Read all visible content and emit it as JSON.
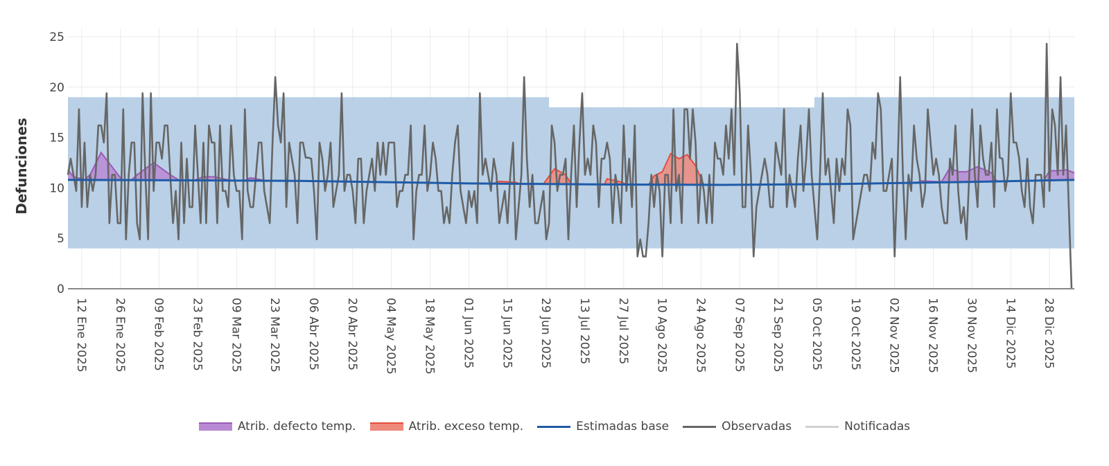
{
  "chart_data": {
    "type": "line",
    "ylabel": "Defunciones",
    "ylim": [
      0,
      25
    ],
    "yticks": [
      0,
      5,
      10,
      15,
      20,
      25
    ],
    "xlim": [
      "2025-01-07",
      "2026-01-06"
    ],
    "frequency": "daily",
    "grid": true,
    "legend_position": "bottom",
    "xtick_labels": [
      "12 Ene 2025",
      "26 Ene 2025",
      "09 Feb 2025",
      "23 Feb 2025",
      "09 Mar 2025",
      "23 Mar 2025",
      "06 Abr 2025",
      "20 Abr 2025",
      "04 May 2025",
      "18 May 2025",
      "01 Jun 2025",
      "15 Jun 2025",
      "29 Jun 2025",
      "13 Jul 2025",
      "27 Jul 2025",
      "10 Ago 2025",
      "24 Ago 2025",
      "07 Sep 2025",
      "21 Sep 2025",
      "05 Oct 2025",
      "19 Oct 2025",
      "02 Nov 2025",
      "16 Nov 2025",
      "30 Nov 2025",
      "14 Dic 2025",
      "28 Dic 2025"
    ],
    "xtick_dates": [
      "2025-01-12",
      "2025-01-26",
      "2025-02-09",
      "2025-02-23",
      "2025-03-09",
      "2025-03-23",
      "2025-04-06",
      "2025-04-20",
      "2025-05-04",
      "2025-05-18",
      "2025-06-01",
      "2025-06-15",
      "2025-06-29",
      "2025-07-13",
      "2025-07-27",
      "2025-08-10",
      "2025-08-24",
      "2025-09-07",
      "2025-09-21",
      "2025-10-05",
      "2025-10-19",
      "2025-11-02",
      "2025-11-16",
      "2025-11-30",
      "2025-12-14",
      "2025-12-28"
    ],
    "band": [
      {
        "from": "2025-01-07",
        "to": "2025-06-29",
        "lower": 4,
        "upper": 19
      },
      {
        "from": "2025-06-30",
        "to": "2025-10-03",
        "lower": 4,
        "upper": 18
      },
      {
        "from": "2025-10-04",
        "to": "2026-01-06",
        "lower": 4,
        "upper": 19
      }
    ],
    "series": [
      {
        "name": "Atrib. defecto temp.",
        "kind": "area",
        "color": "#9b59b6",
        "fill": "#b98ad4",
        "polygons": [
          [
            [
              "2025-01-07",
              11.8
            ],
            [
              "2025-01-09",
              11.1
            ],
            [
              "2025-01-12",
              10.9
            ],
            [
              "2025-01-13",
              10.8
            ],
            [
              "2025-01-15",
              11.3
            ],
            [
              "2025-01-19",
              13.5
            ],
            [
              "2025-01-26",
              11.0
            ],
            [
              "2025-01-27",
              10.8
            ]
          ],
          [
            [
              "2025-01-30",
              10.8
            ],
            [
              "2025-02-01",
              11.3
            ],
            [
              "2025-02-07",
              12.5
            ],
            [
              "2025-02-13",
              11.3
            ],
            [
              "2025-02-16",
              10.8
            ]
          ],
          [
            [
              "2025-02-22",
              10.8
            ],
            [
              "2025-02-25",
              11.1
            ],
            [
              "2025-03-01",
              11.1
            ],
            [
              "2025-03-06",
              10.8
            ]
          ],
          [
            [
              "2025-03-12",
              10.75
            ],
            [
              "2025-03-14",
              11.0
            ],
            [
              "2025-03-19",
              10.75
            ]
          ],
          [
            [
              "2025-11-10",
              10.55
            ],
            [
              "2025-11-12",
              10.7
            ],
            [
              "2025-11-19",
              10.6
            ],
            [
              "2025-11-22",
              12.0
            ],
            [
              "2025-11-25",
              11.6
            ],
            [
              "2025-11-28",
              11.6
            ],
            [
              "2025-12-02",
              12.1
            ],
            [
              "2025-12-07",
              11.5
            ],
            [
              "2025-12-09",
              10.65
            ]
          ],
          [
            [
              "2025-12-26",
              10.75
            ],
            [
              "2025-12-28",
              11.7
            ],
            [
              "2025-12-31",
              11.7
            ],
            [
              "2026-01-03",
              11.8
            ],
            [
              "2026-01-06",
              11.5
            ]
          ]
        ]
      },
      {
        "name": "Atrib. exceso temp.",
        "kind": "area",
        "color": "#e74c3c",
        "fill": "#ee8a7c",
        "polygons": [
          [
            [
              "2025-06-10",
              10.45
            ],
            [
              "2025-06-12",
              10.65
            ],
            [
              "2025-06-18",
              10.55
            ],
            [
              "2025-06-19",
              10.45
            ]
          ],
          [
            [
              "2025-06-28",
              10.4
            ],
            [
              "2025-07-02",
              11.9
            ],
            [
              "2025-07-06",
              11.3
            ],
            [
              "2025-07-08",
              10.4
            ]
          ],
          [
            [
              "2025-07-20",
              10.35
            ],
            [
              "2025-07-21",
              10.9
            ],
            [
              "2025-07-26",
              10.6
            ],
            [
              "2025-07-28",
              10.35
            ]
          ],
          [
            [
              "2025-08-05",
              10.3
            ],
            [
              "2025-08-07",
              11.2
            ],
            [
              "2025-08-10",
              11.6
            ],
            [
              "2025-08-13",
              13.4
            ],
            [
              "2025-08-16",
              12.9
            ],
            [
              "2025-08-19",
              13.3
            ],
            [
              "2025-08-22",
              12.2
            ],
            [
              "2025-08-25",
              10.3
            ]
          ]
        ]
      },
      {
        "name": "Estimadas base",
        "kind": "line",
        "color": "#1f5aa6",
        "points": [
          [
            "2025-01-07",
            10.8
          ],
          [
            "2025-04-01",
            10.7
          ],
          [
            "2025-06-01",
            10.45
          ],
          [
            "2025-07-15",
            10.35
          ],
          [
            "2025-09-01",
            10.3
          ],
          [
            "2025-10-15",
            10.4
          ],
          [
            "2025-12-01",
            10.6
          ],
          [
            "2026-01-06",
            10.8
          ]
        ]
      },
      {
        "name": "Observadas",
        "kind": "line",
        "color": "#666666",
        "start": "2025-01-07",
        "values": [
          11.3,
          12.9,
          11.3,
          9.7,
          17.8,
          8.1,
          14.5,
          8.1,
          11.3,
          9.7,
          11.3,
          16.2,
          16.2,
          14.5,
          19.4,
          6.5,
          11.3,
          11.3,
          6.5,
          6.5,
          17.8,
          4.9,
          11.3,
          14.5,
          14.5,
          6.5,
          4.9,
          19.4,
          11.3,
          4.9,
          19.4,
          9.7,
          14.5,
          14.5,
          12.9,
          16.2,
          16.2,
          11.3,
          6.5,
          9.7,
          4.9,
          14.5,
          6.5,
          12.9,
          8.1,
          8.1,
          16.2,
          11.3,
          6.5,
          14.5,
          6.5,
          16.2,
          14.5,
          14.5,
          6.5,
          16.2,
          9.7,
          9.7,
          8.1,
          16.2,
          11.3,
          9.7,
          9.7,
          4.9,
          17.8,
          9.7,
          8.1,
          8.1,
          11.3,
          14.5,
          14.5,
          9.7,
          8.1,
          6.5,
          14.5,
          21.0,
          16.2,
          14.5,
          19.4,
          8.1,
          14.5,
          12.9,
          11.3,
          6.5,
          14.5,
          14.5,
          13.0,
          13.0,
          12.9,
          9.7,
          4.9,
          14.5,
          12.9,
          9.7,
          11.3,
          14.5,
          8.1,
          9.7,
          11.3,
          19.4,
          9.7,
          11.3,
          11.3,
          9.7,
          6.5,
          12.9,
          12.9,
          6.5,
          9.7,
          11.3,
          12.9,
          9.7,
          14.5,
          11.3,
          14.5,
          11.3,
          14.5,
          14.5,
          14.5,
          8.1,
          9.7,
          9.7,
          11.3,
          11.3,
          16.2,
          4.9,
          9.7,
          11.3,
          11.3,
          16.2,
          9.7,
          11.3,
          14.5,
          12.9,
          9.7,
          9.7,
          6.5,
          8.1,
          6.5,
          11.3,
          14.5,
          16.2,
          9.7,
          8.1,
          6.5,
          9.7,
          8.1,
          9.7,
          6.5,
          19.4,
          11.3,
          12.9,
          11.3,
          9.7,
          12.9,
          11.3,
          6.5,
          8.1,
          9.7,
          6.5,
          11.3,
          14.5,
          4.9,
          8.1,
          11.3,
          21.0,
          12.9,
          8.1,
          11.3,
          6.5,
          6.5,
          8.1,
          9.7,
          4.9,
          6.5,
          16.2,
          14.5,
          9.7,
          11.3,
          11.3,
          12.9,
          4.9,
          11.3,
          16.2,
          8.1,
          14.5,
          19.4,
          11.3,
          12.9,
          11.3,
          16.2,
          14.5,
          8.1,
          12.9,
          12.9,
          14.5,
          12.9,
          6.5,
          11.3,
          9.7,
          6.5,
          16.2,
          9.7,
          12.9,
          8.1,
          16.2,
          3.2,
          4.9,
          3.2,
          3.2,
          6.5,
          11.3,
          8.1,
          11.3,
          9.7,
          3.2,
          11.3,
          11.3,
          6.5,
          17.8,
          9.7,
          11.3,
          6.5,
          17.8,
          17.8,
          12.9,
          17.8,
          14.5,
          6.5,
          11.3,
          9.7,
          6.5,
          11.3,
          6.5,
          14.5,
          12.9,
          12.9,
          11.3,
          16.2,
          12.9,
          17.8,
          11.3,
          24.3,
          19.4,
          8.1,
          8.1,
          16.2,
          11.3,
          3.2,
          8.1,
          9.7,
          11.3,
          12.9,
          11.3,
          8.1,
          8.1,
          14.5,
          12.9,
          11.3,
          17.8,
          8.1,
          11.3,
          9.7,
          8.1,
          12.9,
          16.2,
          9.7,
          12.9,
          17.8,
          11.3,
          8.1,
          4.9,
          11.3,
          19.4,
          11.3,
          12.9,
          9.7,
          6.5,
          12.9,
          9.7,
          12.9,
          11.3,
          17.8,
          16.2,
          4.9,
          6.5,
          8.1,
          9.7,
          11.3,
          11.3,
          9.7,
          14.5,
          12.9,
          19.4,
          17.8,
          9.7,
          9.7,
          11.3,
          12.9,
          3.2,
          11.3,
          21.0,
          11.3,
          4.9,
          11.3,
          9.7,
          16.2,
          12.9,
          11.3,
          8.1,
          9.7,
          17.8,
          14.5,
          11.3,
          12.9,
          11.3,
          8.1,
          6.5,
          6.5,
          12.9,
          11.3,
          16.2,
          9.7,
          6.5,
          8.1,
          4.9,
          11.3,
          17.8,
          11.3,
          8.1,
          16.2,
          12.9,
          11.3,
          11.3,
          14.5,
          8.1,
          17.8,
          13.0,
          12.9,
          9.7,
          11.3,
          19.4,
          14.5,
          14.5,
          13.0,
          9.7,
          8.1,
          12.9,
          8.1,
          6.5,
          11.3,
          11.3,
          11.3,
          8.1,
          24.3,
          9.7,
          17.8,
          16.2,
          11.3,
          21.0,
          11.3,
          16.2,
          8.1,
          0
        ]
      },
      {
        "name": "Notificadas",
        "kind": "line",
        "color": "#d0d0d0"
      }
    ],
    "band_color": "#b9d0e6"
  }
}
